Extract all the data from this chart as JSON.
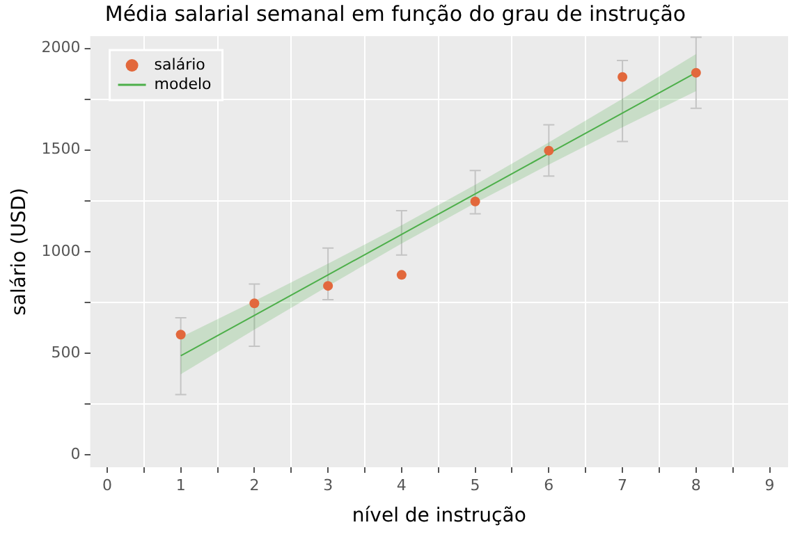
{
  "chart_data": {
    "type": "scatter",
    "title": "Média salarial semanal em função do grau de instrução",
    "xlabel": "nível de instrução",
    "ylabel": "salário (USD)",
    "xlim": [
      -0.23,
      9.25
    ],
    "ylim": [
      -60,
      2060
    ],
    "xticks": [
      0,
      {
        "value": 0.5,
        "label": null
      },
      1,
      {
        "value": 1.5,
        "label": null
      },
      2,
      {
        "value": 2.5,
        "label": null
      },
      3,
      {
        "value": 3.5,
        "label": null
      },
      4,
      {
        "value": 4.5,
        "label": null
      },
      5,
      {
        "value": 5.5,
        "label": null
      },
      6,
      {
        "value": 6.5,
        "label": null
      },
      7,
      {
        "value": 7.5,
        "label": null
      },
      8,
      {
        "value": 8.5,
        "label": null
      },
      9
    ],
    "yticks": [
      0,
      {
        "value": 250,
        "label": null
      },
      500,
      {
        "value": 750,
        "label": null
      },
      1000,
      {
        "value": 1250,
        "label": null
      },
      1500,
      {
        "value": 1750,
        "label": null
      },
      2000
    ],
    "grid": true,
    "legend": "top left",
    "series": [
      {
        "name": "salário",
        "color": "#e2683c",
        "marker": "circle",
        "x": [
          1,
          2,
          3,
          4,
          5,
          6,
          7,
          8
        ],
        "values": [
          592,
          746,
          832,
          886,
          1247,
          1497,
          1859,
          1880
        ],
        "errors": [
          [
            297,
            675
          ],
          [
            535,
            841
          ],
          [
            764,
            1018
          ],
          [
            984,
            1202
          ],
          [
            1186,
            1399
          ],
          [
            1372,
            1624
          ],
          [
            1542,
            1940
          ],
          [
            1705,
            2055
          ]
        ]
      },
      {
        "name": "modelo",
        "type": "line",
        "color": "#4daf4a",
        "marker": "none",
        "x": [
          1,
          2,
          3,
          4,
          5,
          6,
          7,
          8
        ],
        "values": [
          488,
          687,
          886,
          1085,
          1284,
          1483,
          1682,
          1881
        ],
        "lower": [
          397,
          617,
          831,
          1040,
          1239,
          1428,
          1612,
          1790
        ],
        "upper": [
          579,
          757,
          941,
          1130,
          1329,
          1538,
          1752,
          1972
        ]
      }
    ]
  }
}
